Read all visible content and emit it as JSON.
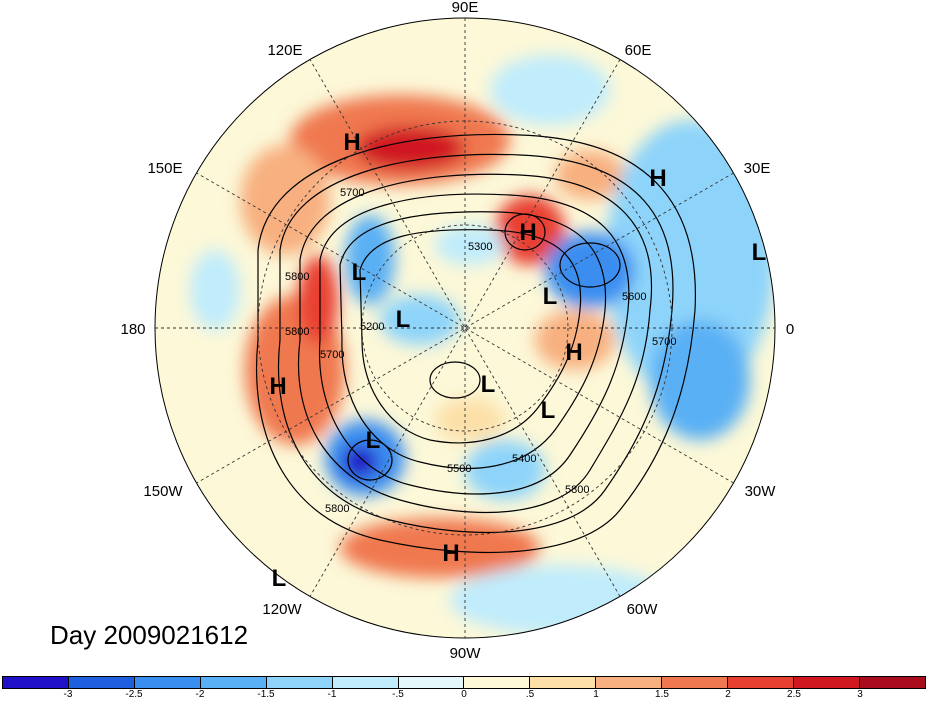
{
  "lon_labels": [
    {
      "text": "90E"
    },
    {
      "text": "60E"
    },
    {
      "text": "30E"
    },
    {
      "text": "0"
    },
    {
      "text": "30W"
    },
    {
      "text": "60W"
    },
    {
      "text": "90W"
    },
    {
      "text": "120W"
    },
    {
      "text": "150W"
    },
    {
      "text": "180"
    },
    {
      "text": "150E"
    },
    {
      "text": "120E"
    }
  ],
  "pressure_centers": [
    {
      "type": "H"
    },
    {
      "type": "H"
    },
    {
      "type": "H"
    },
    {
      "type": "H"
    },
    {
      "type": "H"
    },
    {
      "type": "H"
    },
    {
      "type": "L"
    },
    {
      "type": "L"
    },
    {
      "type": "L"
    },
    {
      "type": "L"
    },
    {
      "type": "L"
    },
    {
      "type": "L"
    },
    {
      "type": "L"
    },
    {
      "type": "L"
    }
  ],
  "contour_labels": [
    "5700",
    "5800",
    "5800",
    "5700",
    "5200",
    "5300",
    "5600",
    "5700",
    "5500",
    "5400",
    "5800",
    "5800"
  ],
  "day_label": "Day 2009021612",
  "colorbar": {
    "colors": [
      "#2010c8",
      "#1e5fe0",
      "#3a8ef0",
      "#5ab0f4",
      "#8ed4fa",
      "#c0ecfc",
      "#e4f8fc",
      "#fcf8d8",
      "#fce0a8",
      "#f8b080",
      "#f07850",
      "#e84030",
      "#d01820",
      "#a80c1c"
    ],
    "ticks": [
      "-3",
      "-2.5",
      "-2",
      "-1.5",
      "-1",
      "-.5",
      "0",
      ".5",
      "1",
      "1.5",
      "2",
      "2.5",
      "3"
    ]
  }
}
